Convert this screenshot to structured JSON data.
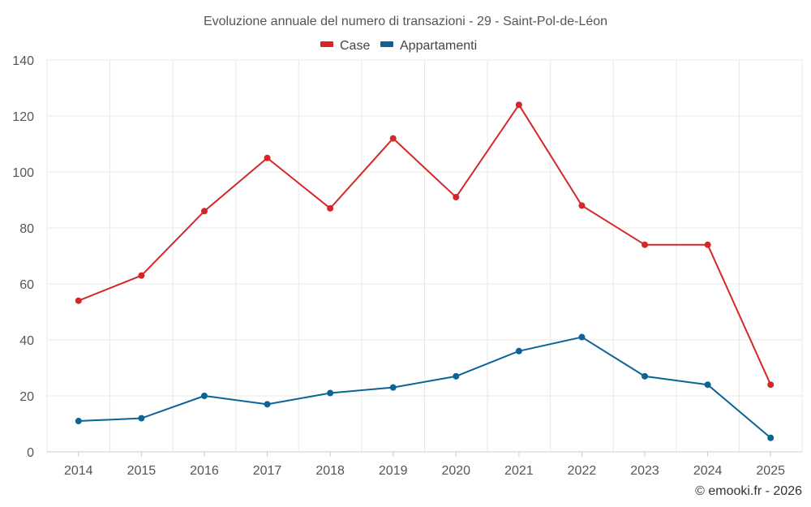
{
  "chart_data": {
    "type": "line",
    "title": "Evoluzione annuale del numero di transazioni - 29 - Saint-Pol-de-Léon",
    "xlabel": "",
    "ylabel": "",
    "categories": [
      "2014",
      "2015",
      "2016",
      "2017",
      "2018",
      "2019",
      "2020",
      "2021",
      "2022",
      "2023",
      "2024",
      "2025"
    ],
    "ylim": [
      0,
      140
    ],
    "yticks": [
      0,
      20,
      40,
      60,
      80,
      100,
      120,
      140
    ],
    "grid": true,
    "legend_position": "top-center",
    "series": [
      {
        "name": "Case",
        "color": "#d62728",
        "values": [
          54,
          63,
          86,
          105,
          87,
          112,
          91,
          124,
          88,
          74,
          74,
          24
        ]
      },
      {
        "name": "Appartamenti",
        "color": "#0a6496",
        "values": [
          11,
          12,
          20,
          17,
          21,
          23,
          27,
          36,
          41,
          27,
          24,
          5
        ]
      }
    ],
    "credit": "© emooki.fr - 2026"
  }
}
